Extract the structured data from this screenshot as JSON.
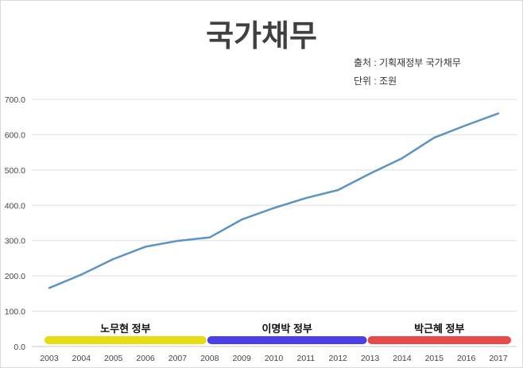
{
  "chart_data": {
    "type": "line",
    "title": "국가채무",
    "source": "출처 : 기획재정부 국가채무",
    "unit": "단위 : 조원",
    "x": [
      "2003",
      "2004",
      "2005",
      "2006",
      "2007",
      "2008",
      "2009",
      "2010",
      "2011",
      "2012",
      "2013",
      "2014",
      "2015",
      "2016",
      "2017"
    ],
    "series": [
      {
        "name": "국가채무",
        "color": "#5b93c4",
        "values": [
          165.8,
          203.7,
          247.9,
          282.7,
          299.2,
          309.0,
          359.6,
          392.2,
          420.5,
          443.1,
          489.8,
          533.2,
          591.5,
          626.9,
          660.2
        ]
      }
    ],
    "ylim": [
      0,
      700
    ],
    "yticks": [
      "0.0",
      "100.0",
      "200.0",
      "300.0",
      "400.0",
      "500.0",
      "600.0",
      "700.0"
    ],
    "grid": true,
    "governments": [
      {
        "label": "노무현 정부",
        "start": 2003,
        "end": 2008,
        "color": "#e6dc12"
      },
      {
        "label": "이명박 정부",
        "start": 2008,
        "end": 2013,
        "color": "#4a3fe6"
      },
      {
        "label": "박근혜 정부",
        "start": 2013,
        "end": 2017,
        "color": "#e84848"
      }
    ]
  }
}
